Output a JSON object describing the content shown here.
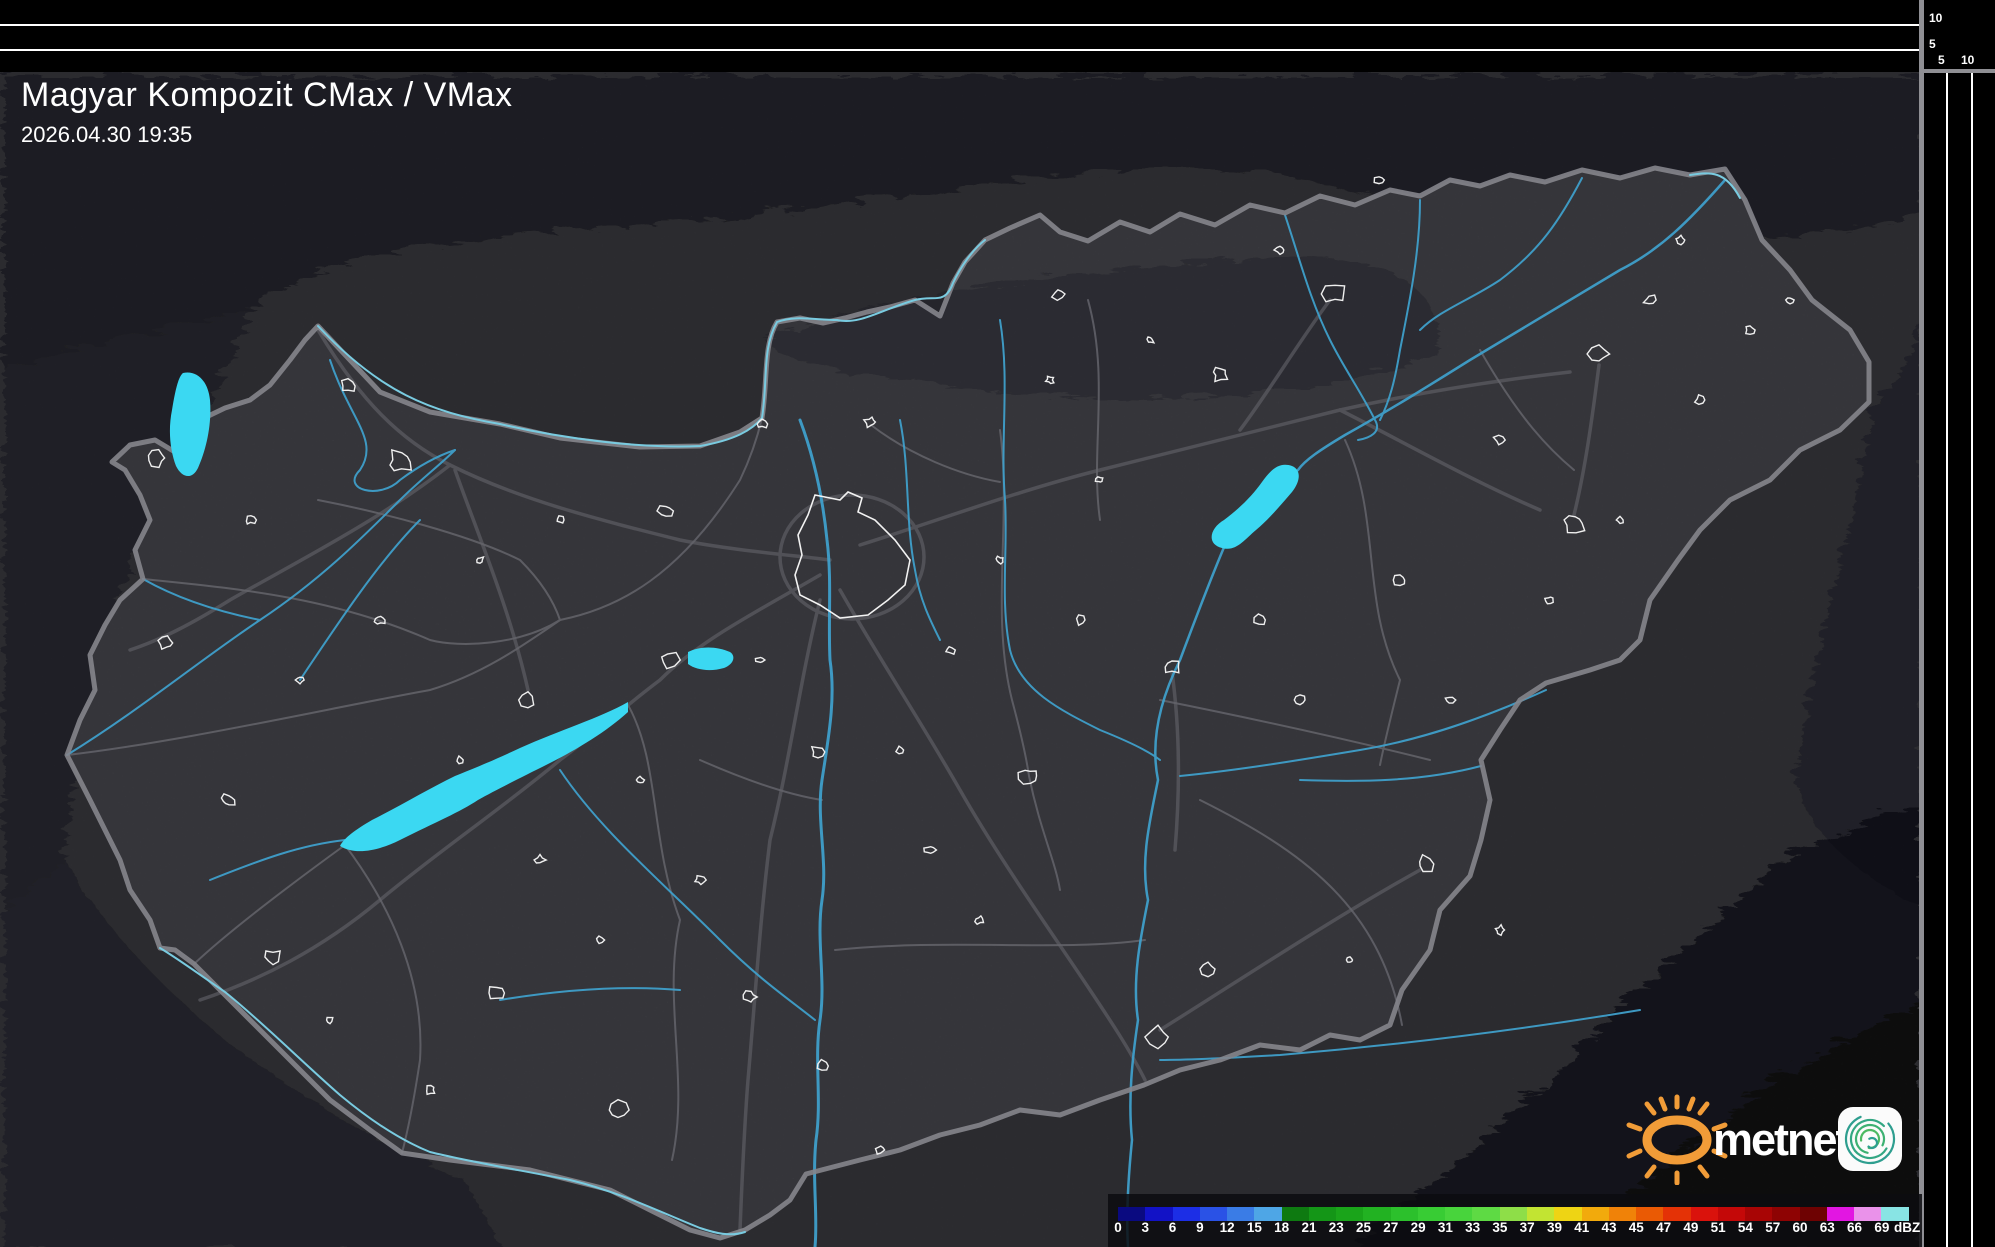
{
  "header": {
    "title": "Magyar Kompozit CMax / VMax",
    "timestamp": "2026.04.30 19:35"
  },
  "scales": {
    "top_axis_10": "10",
    "top_axis_5": "5",
    "right_axis_5": "5",
    "right_axis_10": "10"
  },
  "legend": {
    "unit": "dBZ",
    "boundaries": [
      "0",
      "3",
      "6",
      "9",
      "12",
      "15",
      "18",
      "21",
      "23",
      "25",
      "27",
      "29",
      "31",
      "33",
      "35",
      "37",
      "39",
      "41",
      "43",
      "45",
      "47",
      "49",
      "51",
      "54",
      "57",
      "60",
      "63",
      "66",
      "69"
    ],
    "colors": [
      "#0a0a80",
      "#1212c6",
      "#1c2ee6",
      "#2a52e6",
      "#3a7ce6",
      "#4ea6e6",
      "#0e7a11",
      "#149617",
      "#1aa41a",
      "#22b222",
      "#2cc02c",
      "#38cc34",
      "#48d43c",
      "#5eda44",
      "#8ede48",
      "#c2e432",
      "#eed414",
      "#f2aa0c",
      "#f08208",
      "#ea5a04",
      "#e43206",
      "#da120c",
      "#c40808",
      "#a80505",
      "#8e0303",
      "#6e0202",
      "#e216e2",
      "#ea92ea",
      "#88e4e4"
    ]
  },
  "logo": {
    "brand": "metnet",
    "sun_color": "#f19c38"
  },
  "map": {
    "accent_water": "#3bd8f2",
    "accent_river": "#3f9fca",
    "country_border": "#85858c"
  }
}
